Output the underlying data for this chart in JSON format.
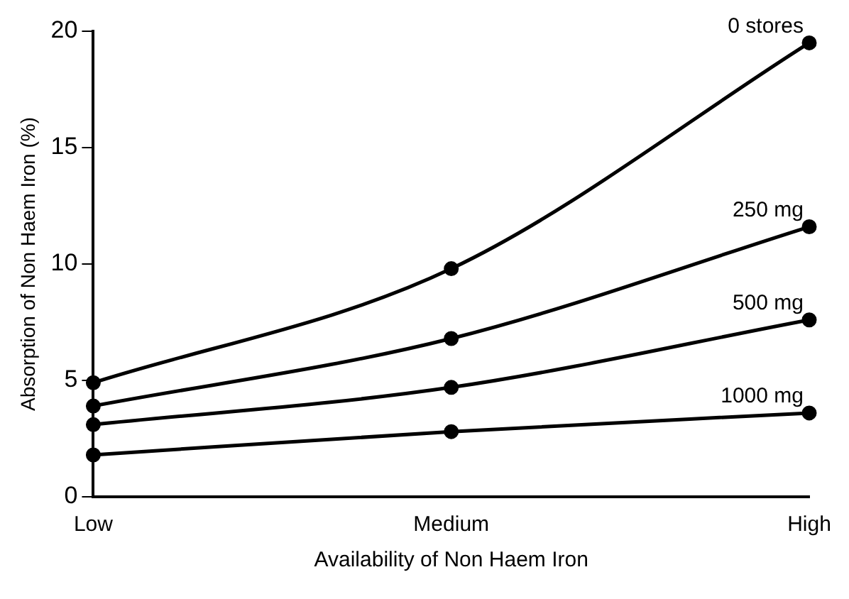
{
  "chart_data": {
    "type": "line",
    "xlabel": "Availability of Non Haem Iron",
    "ylabel": "Absorption of Non Haem Iron (%)",
    "categories": [
      "Low",
      "Medium",
      "High"
    ],
    "series": [
      {
        "name": "0 stores",
        "color": "#000000",
        "values": [
          4.9,
          9.8,
          19.5
        ]
      },
      {
        "name": "250 mg",
        "color": "#000000",
        "values": [
          3.9,
          6.8,
          11.6
        ]
      },
      {
        "name": "500 mg",
        "color": "#000000",
        "values": [
          3.1,
          4.7,
          7.6
        ]
      },
      {
        "name": "1000 mg",
        "color": "#000000",
        "values": [
          1.8,
          2.8,
          3.6
        ]
      }
    ],
    "ylim": [
      0,
      20
    ],
    "yticks": [
      0,
      5,
      10,
      15,
      20
    ],
    "grid": false,
    "legend": false,
    "marker": "circle",
    "line_style": "solid"
  }
}
